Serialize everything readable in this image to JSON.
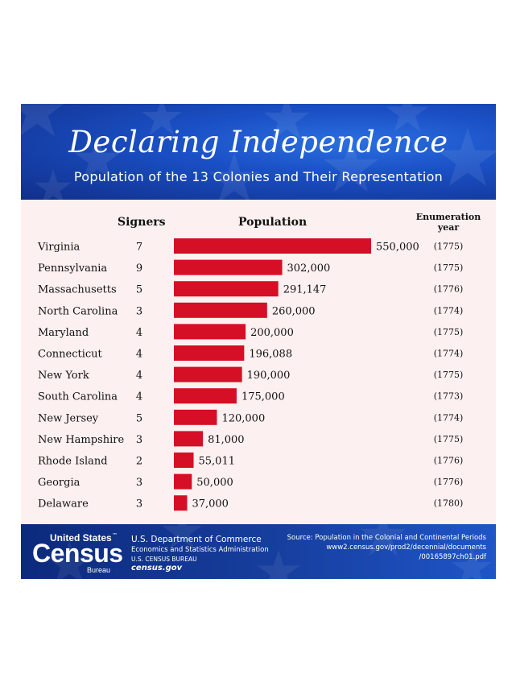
{
  "header": {
    "title": "Declaring Independence",
    "subtitle": "Population of the 13 Colonies and Their Representation"
  },
  "columns": {
    "signers": "Signers",
    "population": "Population",
    "enumeration_line1": "Enumeration",
    "enumeration_line2": "year"
  },
  "colors": {
    "bar": "#d50f25",
    "header_blue": "#1a4fc4",
    "background": "#fdf0f0"
  },
  "chart_data": {
    "type": "bar",
    "orientation": "horizontal",
    "title": "Population of the 13 Colonies and Their Representation",
    "xlabel": "Population",
    "xlim": [
      0,
      550000
    ],
    "categories": [
      "Virginia",
      "Pennsylvania",
      "Massachusetts",
      "North Carolina",
      "Maryland",
      "Connecticut",
      "New York",
      "South Carolina",
      "New Jersey",
      "New Hampshire",
      "Rhode Island",
      "Georgia",
      "Delaware"
    ],
    "values": [
      550000,
      302000,
      291147,
      260000,
      200000,
      196088,
      190000,
      175000,
      120000,
      81000,
      55011,
      50000,
      37000
    ],
    "value_labels": [
      "550,000",
      "302,000",
      "291,147",
      "260,000",
      "200,000",
      "196,088",
      "190,000",
      "175,000",
      "120,000",
      "81,000",
      "55,011",
      "50,000",
      "37,000"
    ],
    "signers": [
      7,
      9,
      5,
      3,
      4,
      4,
      4,
      4,
      5,
      3,
      2,
      3,
      3
    ],
    "enumeration_years": [
      "(1775)",
      "(1775)",
      "(1776)",
      "(1774)",
      "(1775)",
      "(1774)",
      "(1775)",
      "(1773)",
      "(1774)",
      "(1775)",
      "(1776)",
      "(1776)",
      "(1780)"
    ]
  },
  "footer": {
    "logo_line1": "United States",
    "logo_tm": "™",
    "logo_main": "Census",
    "logo_sub": "Bureau",
    "dept": "U.S. Department of Commerce",
    "admin": "Economics and Statistics Administration",
    "bureau": "U.S. CENSUS BUREAU",
    "website": "census.gov",
    "source_line1": "Source: Population in the Colonial and Continental Periods",
    "source_line2": "www2.census.gov/prod2/decennial/documents",
    "source_line3": "/00165897ch01.pdf"
  }
}
